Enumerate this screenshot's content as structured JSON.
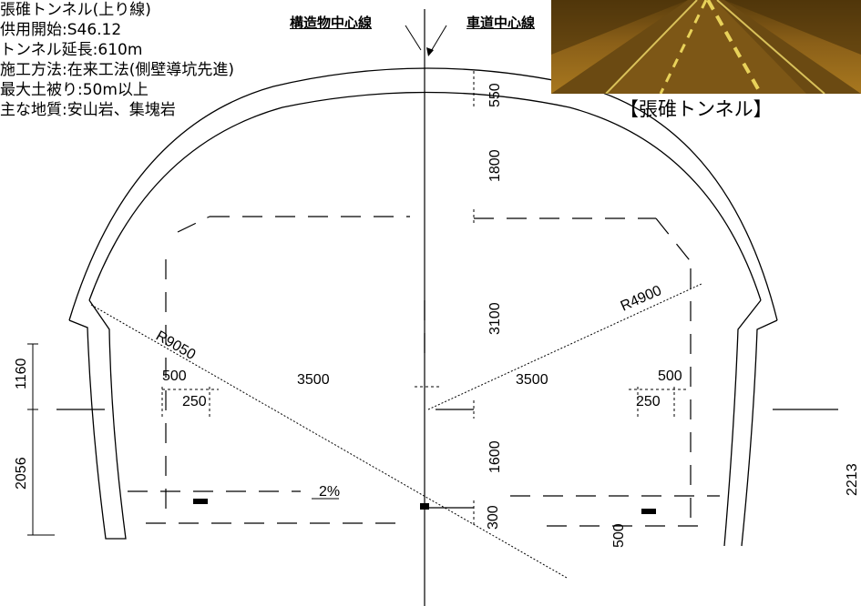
{
  "info": {
    "name": "張碓トンネル(上り線)",
    "opened": "供用開始:S46.12",
    "length": "トンネル延長:610m",
    "method": "施工方法:在来工法(側壁導坑先進)",
    "overburden": "最大土被り:50m以上",
    "geology": "主な地質:安山岩、集塊岩"
  },
  "labels": {
    "structure_center": "構造物中心線",
    "road_center": "車道中心線"
  },
  "photo": {
    "caption": "【張碓トンネル】"
  },
  "dimensions": {
    "d550": "550",
    "d1800": "1800",
    "d3100": "3100",
    "d1600": "1600",
    "d300": "300",
    "r4900": "R4900",
    "r9050": "R9050",
    "w3500_left": "3500",
    "w3500_right": "3500",
    "w500_left": "500",
    "w250_left": "250",
    "w500_right": "500",
    "w250_right": "250",
    "h1160": "1160",
    "h2056": "2056",
    "h2213": "2213",
    "h500": "500",
    "slope": "2%"
  },
  "colors": {
    "line": "#000000",
    "photo_dark": "#5a3d0c",
    "photo_light": "#a8781f",
    "lane_marking": "#e8d25a"
  }
}
